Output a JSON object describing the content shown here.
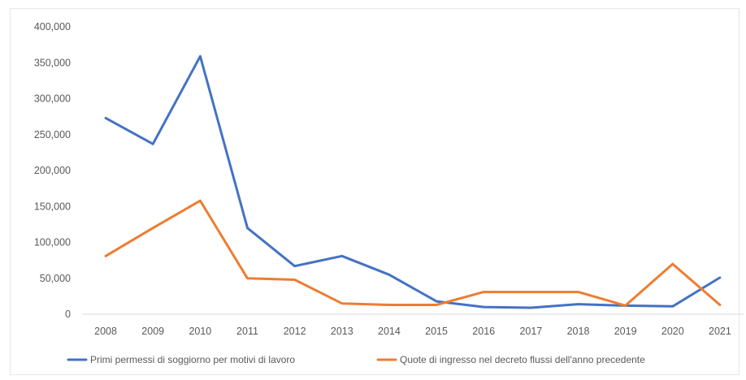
{
  "chart_data": {
    "type": "line",
    "title": "",
    "xlabel": "",
    "ylabel": "",
    "x": [
      "2008",
      "2009",
      "2010",
      "2011",
      "2012",
      "2013",
      "2014",
      "2015",
      "2016",
      "2017",
      "2018",
      "2019",
      "2020",
      "2021"
    ],
    "ylim": [
      0,
      400000
    ],
    "yticks": [
      0,
      50000,
      100000,
      150000,
      200000,
      250000,
      300000,
      350000,
      400000
    ],
    "ytick_labels": [
      "0",
      "50,000",
      "100,000",
      "150,000",
      "200,000",
      "250,000",
      "300,000",
      "350,000",
      "400,000"
    ],
    "grid": false,
    "legend_position": "bottom",
    "series": [
      {
        "name": "Primi permessi di soggiorno per motivi di lavoro",
        "color": "#4472C4",
        "values": [
          273000,
          237000,
          359000,
          120000,
          67000,
          81000,
          55000,
          18000,
          10000,
          9000,
          14000,
          12000,
          11000,
          51000
        ]
      },
      {
        "name": "Quote di ingresso nel decreto flussi dell'anno precedente",
        "color": "#ED7D31",
        "values": [
          81000,
          120000,
          158000,
          50000,
          48000,
          15000,
          13000,
          13000,
          31000,
          31000,
          31000,
          12000,
          70000,
          13000
        ]
      }
    ]
  }
}
